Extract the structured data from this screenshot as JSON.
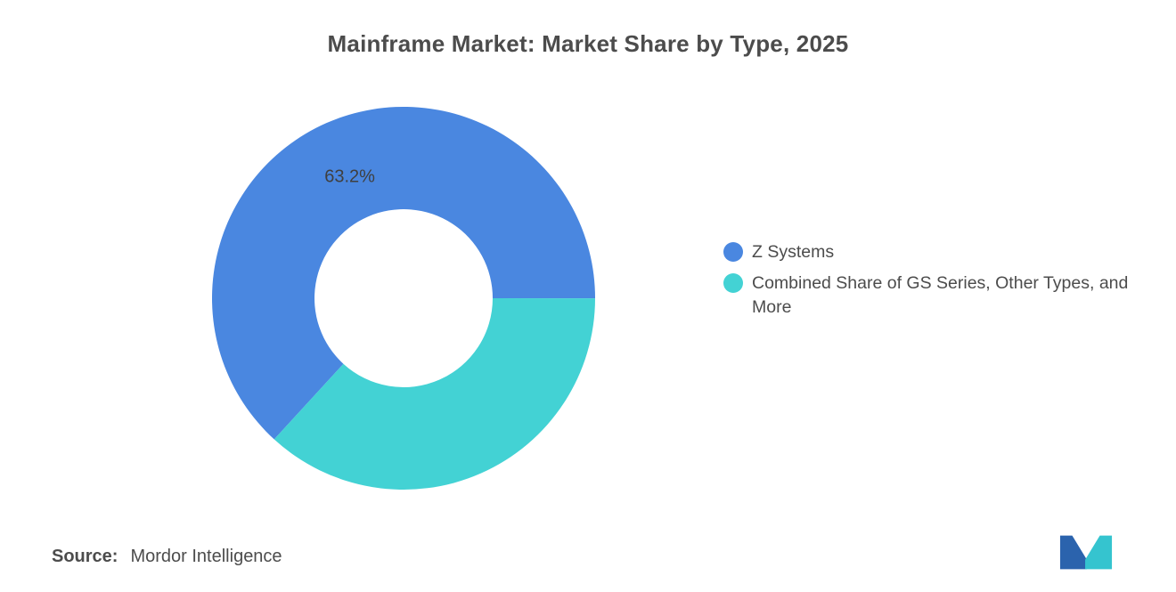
{
  "title": "Mainframe Market: Market Share by Type, 2025",
  "source": {
    "label": "Source:",
    "value": "Mordor Intelligence"
  },
  "legend": [
    {
      "label": "Z Systems",
      "color": "#4a87e0"
    },
    {
      "label": "Combined Share of GS Series, Other Types, and More",
      "color": "#43d2d4"
    }
  ],
  "chart_data": {
    "type": "pie",
    "donut": true,
    "title": "Mainframe Market: Market Share by Type, 2025",
    "start_angle_deg": 132.5,
    "legend_position": "right",
    "series": [
      {
        "name": "Z Systems",
        "value": 63.2,
        "color": "#4a87e0",
        "data_label": "63.2%"
      },
      {
        "name": "Combined Share of GS Series, Other Types, and More",
        "value": 36.8,
        "color": "#43d2d4",
        "data_label": ""
      }
    ]
  },
  "logo": {
    "name": "mordor-intelligence-logo",
    "color_dark": "#2b63ad",
    "color_teal": "#35c4cf"
  }
}
